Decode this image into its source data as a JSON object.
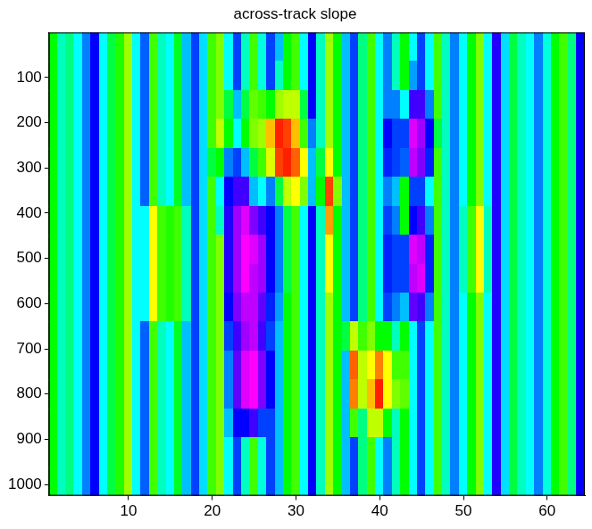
{
  "chart_data": {
    "type": "heatmap",
    "title": "across-track slope",
    "x": [
      1,
      2,
      3,
      4,
      5,
      6,
      7,
      8,
      9,
      10,
      11,
      12,
      13,
      14,
      15,
      16,
      17,
      18,
      19,
      20,
      21,
      22,
      23,
      24,
      25,
      26,
      27,
      28,
      29,
      30,
      31,
      32,
      33,
      34,
      35,
      36,
      37,
      38,
      39,
      40,
      41,
      42,
      43,
      44,
      45,
      46,
      47,
      48,
      49,
      50,
      51,
      52,
      53,
      54,
      55,
      56,
      57,
      58,
      59,
      60,
      61,
      62,
      63,
      64
    ],
    "y": [
      32.5,
      96.5,
      160.5,
      224.5,
      288.5,
      352.5,
      416.5,
      480.5,
      544.5,
      608.5,
      672.5,
      736.5,
      800.5,
      864.5,
      928.5,
      992.5
    ],
    "xlim": [
      0.5,
      64.5
    ],
    "ylim": [
      1024.5,
      0.5
    ],
    "xticks": [
      10,
      20,
      30,
      40,
      50,
      60
    ],
    "yticks": [
      100,
      200,
      300,
      400,
      500,
      600,
      700,
      800,
      900,
      1000
    ],
    "zlim": [
      -1,
      1
    ],
    "grid": false,
    "cells": [
      [
        0.2,
        -0.1,
        0,
        -0.2,
        -0.4,
        -0.6,
        -0.2,
        0.1,
        0.25,
        0.45,
        -0.2,
        -0.45,
        0.3,
        -0.1,
        -0.2,
        0.15,
        -0.3,
        -0.5,
        -0.25,
        0.3,
        0.4,
        -0.2,
        -0.5,
        -0.1,
        0.3,
        -0.15,
        -0.5,
        -0.3,
        0.2,
        0.3,
        -0.2,
        -0.6,
        -0.1,
        0.45,
        0.2,
        -0.3,
        -0.5,
        0,
        0.3,
        -0.2,
        -0.4,
        -0.1,
        0.2,
        -0.2,
        -0.5,
        -0.2,
        0.3,
        -0.1,
        -0.4,
        -0.2,
        0.2,
        0.4,
        -0.2,
        -0.65,
        -0.25,
        0.1,
        -0.1,
        -0.2,
        -0.4,
        -0.15,
        0.2,
        0.3,
        0,
        -0.6
      ],
      [
        0.2,
        -0.1,
        0,
        -0.2,
        -0.4,
        -0.6,
        -0.2,
        0.1,
        0.25,
        0.45,
        -0.2,
        -0.45,
        0.3,
        -0.1,
        -0.2,
        0.15,
        -0.3,
        -0.5,
        -0.25,
        0.3,
        0.4,
        -0.2,
        -0.5,
        -0.1,
        0.3,
        -0.15,
        -0.5,
        -0.1,
        0.2,
        0.3,
        -0.2,
        -0.6,
        -0.1,
        0.45,
        0.2,
        -0.3,
        -0.5,
        0,
        0.3,
        -0.2,
        -0.4,
        -0.1,
        0.2,
        -0.35,
        -0.5,
        -0.2,
        0.3,
        -0.1,
        -0.4,
        -0.2,
        0.2,
        0.4,
        -0.2,
        -0.65,
        -0.25,
        0.1,
        -0.1,
        -0.2,
        -0.4,
        -0.15,
        0.2,
        0.3,
        0,
        -0.6
      ],
      [
        0.2,
        -0.1,
        0,
        -0.2,
        -0.4,
        -0.6,
        -0.2,
        0.1,
        0.25,
        0.45,
        -0.2,
        -0.45,
        0.3,
        -0.1,
        -0.2,
        0.15,
        -0.3,
        -0.5,
        -0.25,
        0.3,
        0.4,
        0.1,
        -0.3,
        0.1,
        0.35,
        0.3,
        0.2,
        0.45,
        0.5,
        0.5,
        0.1,
        -0.6,
        -0.1,
        0.45,
        0.2,
        -0.3,
        -0.5,
        0,
        0.3,
        -0.2,
        -0.4,
        -0.4,
        -0.2,
        -0.7,
        -0.7,
        -0.4,
        0.3,
        -0.1,
        -0.4,
        -0.2,
        0.2,
        0.4,
        -0.2,
        -0.65,
        -0.25,
        0.1,
        -0.1,
        -0.2,
        -0.4,
        -0.15,
        0.2,
        0.3,
        0,
        -0.6
      ],
      [
        0.2,
        -0.1,
        0,
        -0.2,
        -0.4,
        -0.6,
        -0.2,
        0.1,
        0.25,
        0.45,
        -0.2,
        -0.45,
        0.3,
        -0.1,
        -0.2,
        0.15,
        -0.3,
        -0.5,
        -0.25,
        0.3,
        0.5,
        0.2,
        -0.2,
        0.2,
        0.4,
        0.45,
        0.7,
        0.95,
        0.9,
        0.7,
        0.3,
        -0.4,
        -0.1,
        0.45,
        0.2,
        -0.3,
        -0.5,
        0,
        0.3,
        -0.2,
        -0.6,
        -0.5,
        -0.5,
        -0.95,
        -0.85,
        -0.6,
        0.1,
        -0.1,
        -0.4,
        -0.2,
        0.2,
        0.4,
        -0.2,
        -0.65,
        -0.25,
        0.1,
        -0.1,
        -0.2,
        -0.4,
        -0.15,
        0.2,
        0.3,
        0,
        -0.6
      ],
      [
        0.2,
        -0.1,
        0,
        -0.2,
        -0.4,
        -0.6,
        -0.2,
        0.1,
        0.25,
        0.45,
        -0.2,
        -0.45,
        0.3,
        -0.1,
        -0.2,
        0.15,
        -0.3,
        -0.5,
        -0.25,
        0.1,
        0.2,
        -0.4,
        -0.5,
        -0.3,
        0.1,
        0.3,
        0.55,
        0.9,
        0.95,
        0.85,
        0.6,
        -0.3,
        0.1,
        0.6,
        0.2,
        -0.3,
        -0.5,
        0,
        0.3,
        -0.2,
        -0.55,
        -0.5,
        -0.45,
        -0.9,
        -0.8,
        -0.55,
        0.3,
        -0.1,
        -0.4,
        -0.2,
        0.2,
        0.4,
        -0.2,
        -0.65,
        -0.25,
        0.1,
        -0.1,
        -0.2,
        -0.4,
        -0.15,
        0.2,
        0.3,
        0,
        -0.6
      ],
      [
        0.2,
        -0.1,
        0,
        -0.2,
        -0.4,
        -0.6,
        -0.2,
        0.1,
        0.25,
        0.45,
        -0.2,
        -0.45,
        0.3,
        -0.1,
        -0.2,
        0.15,
        -0.3,
        -0.5,
        -0.25,
        0.3,
        -0.2,
        -0.6,
        -0.7,
        -0.7,
        -0.3,
        -0.2,
        -0.4,
        0.1,
        0.5,
        0.6,
        0.4,
        -0.3,
        0.2,
        0.9,
        0.4,
        -0.3,
        -0.5,
        0,
        0.3,
        -0.2,
        -0.4,
        -0.3,
        0.2,
        -0.5,
        -0.5,
        -0.2,
        0.3,
        -0.1,
        -0.4,
        -0.2,
        0.2,
        0.4,
        -0.2,
        -0.65,
        -0.25,
        0.1,
        -0.1,
        -0.2,
        -0.4,
        -0.15,
        0.2,
        0.3,
        0,
        -0.6
      ],
      [
        0.2,
        -0.1,
        0,
        -0.2,
        -0.4,
        -0.6,
        -0.2,
        0.1,
        0.25,
        0.45,
        -0.2,
        -0.2,
        0.6,
        0.3,
        0.25,
        0.3,
        -0.1,
        -0.5,
        -0.25,
        0.3,
        -0.1,
        -0.65,
        -0.85,
        -0.95,
        -0.8,
        -0.7,
        -0.6,
        -0.4,
        0.1,
        0.3,
        -0.2,
        -0.6,
        -0.1,
        0.75,
        0.2,
        -0.3,
        -0.5,
        0,
        0.3,
        -0.2,
        -0.5,
        -0.4,
        0.2,
        -0.6,
        -0.7,
        -0.4,
        0.3,
        -0.1,
        -0.4,
        -0.1,
        0.3,
        0.6,
        -0.1,
        -0.65,
        -0.25,
        0.1,
        -0.1,
        -0.2,
        -0.4,
        -0.15,
        0.2,
        0.3,
        0,
        -0.6
      ],
      [
        0.2,
        -0.1,
        0,
        -0.2,
        -0.4,
        -0.6,
        -0.2,
        0.1,
        0.25,
        0.45,
        -0.2,
        -0.2,
        0.6,
        0.3,
        0.25,
        0.3,
        -0.1,
        -0.5,
        -0.25,
        0.3,
        0.4,
        -0.65,
        -0.85,
        -1,
        -0.95,
        -0.85,
        -0.6,
        -0.4,
        0.1,
        0.3,
        -0.2,
        -0.6,
        -0.1,
        0.6,
        0.2,
        -0.3,
        -0.5,
        0,
        0.3,
        -0.2,
        -0.55,
        -0.5,
        -0.5,
        -0.95,
        -0.9,
        -0.55,
        0.3,
        -0.1,
        -0.4,
        -0.1,
        0.3,
        0.6,
        -0.1,
        -0.65,
        -0.25,
        0.1,
        -0.1,
        -0.2,
        -0.4,
        -0.15,
        0.2,
        0.3,
        0,
        -0.6
      ],
      [
        0.2,
        -0.1,
        0,
        -0.2,
        -0.4,
        -0.6,
        -0.2,
        0.1,
        0.25,
        0.45,
        -0.2,
        -0.2,
        0.6,
        0.3,
        0.25,
        0.3,
        -0.1,
        -0.5,
        -0.25,
        0.3,
        0.4,
        -0.65,
        -0.85,
        -1,
        -0.9,
        -0.85,
        -0.6,
        -0.4,
        0.1,
        0.3,
        -0.2,
        -0.6,
        -0.1,
        0.6,
        0.2,
        -0.3,
        -0.5,
        0,
        0.3,
        -0.2,
        -0.55,
        -0.5,
        -0.5,
        -0.9,
        -0.95,
        -0.55,
        0.3,
        -0.1,
        -0.4,
        -0.1,
        0.3,
        0.6,
        -0.1,
        -0.65,
        -0.25,
        0.1,
        -0.1,
        -0.2,
        -0.4,
        -0.15,
        0.2,
        0.3,
        0,
        -0.6
      ],
      [
        0.2,
        -0.1,
        0,
        -0.2,
        -0.4,
        -0.6,
        -0.2,
        0.1,
        0.25,
        0.45,
        -0.2,
        -0.2,
        0.6,
        0.3,
        0.25,
        0.3,
        -0.1,
        -0.5,
        -0.25,
        0.3,
        0.4,
        -0.6,
        -0.8,
        -0.9,
        -0.9,
        -0.75,
        -0.55,
        -0.35,
        0.2,
        0.3,
        -0.2,
        -0.6,
        -0.1,
        0.45,
        0.2,
        -0.3,
        -0.5,
        0,
        0.3,
        -0.2,
        -0.5,
        -0.4,
        -0.3,
        -0.75,
        -0.7,
        -0.4,
        0.3,
        -0.1,
        -0.4,
        -0.2,
        0.2,
        0.4,
        -0.2,
        -0.65,
        -0.25,
        0.1,
        -0.1,
        -0.2,
        -0.4,
        -0.15,
        0.2,
        0.3,
        0,
        -0.6
      ],
      [
        0.2,
        -0.1,
        0,
        -0.2,
        -0.4,
        -0.6,
        -0.2,
        0.1,
        0.25,
        0.45,
        -0.2,
        -0.45,
        0.3,
        -0.1,
        -0.2,
        0.15,
        -0.3,
        -0.5,
        -0.25,
        0.3,
        0.4,
        -0.5,
        -0.7,
        -0.85,
        -0.9,
        -0.7,
        -0.5,
        -0.3,
        0.2,
        0.3,
        -0.2,
        -0.6,
        -0.1,
        0.45,
        0.2,
        0.1,
        0.5,
        0.3,
        0.4,
        0.2,
        0.2,
        -0.1,
        0.2,
        -0.2,
        -0.5,
        -0.2,
        0.3,
        -0.1,
        -0.4,
        -0.2,
        0.2,
        0.4,
        -0.2,
        -0.65,
        -0.25,
        0.1,
        -0.1,
        -0.2,
        -0.4,
        -0.15,
        0.2,
        0.3,
        0,
        -0.6
      ],
      [
        0.2,
        -0.1,
        0,
        -0.2,
        -0.4,
        -0.6,
        -0.2,
        0.1,
        0.25,
        0.45,
        -0.2,
        -0.45,
        0.3,
        -0.1,
        -0.2,
        0.15,
        -0.3,
        -0.5,
        -0.25,
        0.3,
        0.4,
        -0.4,
        -0.75,
        -0.95,
        -1,
        -0.8,
        -0.6,
        -0.3,
        0.2,
        0.3,
        -0.2,
        -0.6,
        -0.1,
        0.45,
        0.2,
        -0.3,
        0.85,
        0.5,
        0.6,
        0.8,
        0.6,
        0.3,
        0.3,
        -0.2,
        -0.5,
        -0.2,
        0.3,
        -0.1,
        -0.4,
        -0.2,
        0.2,
        0.4,
        -0.2,
        -0.65,
        -0.25,
        0.1,
        -0.1,
        -0.2,
        -0.4,
        -0.15,
        0.2,
        0.3,
        0,
        -0.6
      ],
      [
        0.2,
        -0.1,
        0,
        -0.2,
        -0.4,
        -0.6,
        -0.2,
        0.1,
        0.25,
        0.45,
        -0.2,
        -0.45,
        0.3,
        -0.1,
        -0.2,
        0.15,
        -0.3,
        -0.5,
        -0.25,
        0.3,
        0.4,
        -0.4,
        -0.75,
        -0.95,
        -1,
        -0.8,
        -0.6,
        -0.3,
        0.2,
        0.3,
        -0.2,
        -0.6,
        -0.1,
        0.45,
        0.2,
        -0.3,
        0.8,
        0.5,
        0.7,
        0.95,
        0.6,
        0.4,
        0.35,
        -0.2,
        -0.5,
        -0.2,
        0.3,
        -0.1,
        -0.4,
        -0.2,
        0.2,
        0.4,
        -0.2,
        -0.65,
        -0.25,
        0.1,
        -0.1,
        -0.2,
        -0.4,
        -0.15,
        0.2,
        0.3,
        0,
        -0.6
      ],
      [
        0.2,
        -0.1,
        0,
        -0.2,
        -0.4,
        -0.6,
        -0.2,
        0.1,
        0.25,
        0.45,
        -0.2,
        -0.45,
        0.3,
        -0.1,
        -0.2,
        0.15,
        -0.3,
        -0.5,
        -0.25,
        0.3,
        0.4,
        -0.3,
        -0.6,
        -0.6,
        -0.7,
        -0.5,
        -0.5,
        -0.3,
        0.2,
        0.3,
        -0.2,
        -0.6,
        -0.1,
        0.45,
        0.2,
        -0.3,
        0.3,
        0,
        0.5,
        0.5,
        0.2,
        -0.1,
        0.2,
        -0.2,
        -0.5,
        -0.2,
        0.3,
        -0.1,
        -0.4,
        -0.2,
        0.2,
        0.4,
        -0.2,
        -0.65,
        -0.25,
        0.1,
        -0.1,
        -0.2,
        -0.4,
        -0.15,
        0.2,
        0.3,
        0,
        -0.6
      ],
      [
        0.2,
        -0.1,
        0,
        -0.2,
        -0.4,
        -0.6,
        -0.2,
        0.1,
        0.25,
        0.45,
        -0.2,
        -0.45,
        0.3,
        -0.1,
        -0.2,
        0.15,
        -0.3,
        -0.5,
        -0.25,
        0.3,
        0.4,
        -0.2,
        -0.5,
        -0.1,
        0.3,
        -0.15,
        -0.5,
        -0.3,
        0.2,
        0.3,
        -0.2,
        -0.6,
        -0.1,
        0.45,
        0.2,
        -0.3,
        -0.5,
        0,
        0.3,
        -0.2,
        -0.4,
        -0.1,
        0.2,
        -0.2,
        -0.5,
        -0.2,
        0.3,
        -0.1,
        -0.4,
        -0.2,
        0.2,
        0.4,
        -0.2,
        -0.65,
        -0.25,
        0.1,
        -0.1,
        -0.2,
        -0.4,
        -0.15,
        0.2,
        0.3,
        0,
        -0.6
      ],
      [
        0.2,
        -0.1,
        0,
        -0.2,
        -0.4,
        -0.6,
        -0.2,
        0.1,
        0.25,
        0.45,
        -0.2,
        -0.45,
        0.3,
        -0.1,
        -0.2,
        0.15,
        -0.3,
        -0.5,
        -0.25,
        0.3,
        0.4,
        -0.2,
        -0.5,
        -0.1,
        0.3,
        -0.15,
        -0.5,
        -0.3,
        0.2,
        0.3,
        -0.2,
        -0.6,
        -0.1,
        0.45,
        0.2,
        -0.3,
        -0.5,
        0,
        0.3,
        -0.2,
        -0.4,
        -0.1,
        0.2,
        -0.2,
        -0.5,
        -0.2,
        0.3,
        -0.1,
        -0.4,
        -0.2,
        0.2,
        0.4,
        -0.2,
        -0.65,
        -0.25,
        0.1,
        -0.1,
        -0.2,
        -0.4,
        -0.15,
        0.2,
        0.3,
        0,
        -0.6
      ]
    ]
  }
}
